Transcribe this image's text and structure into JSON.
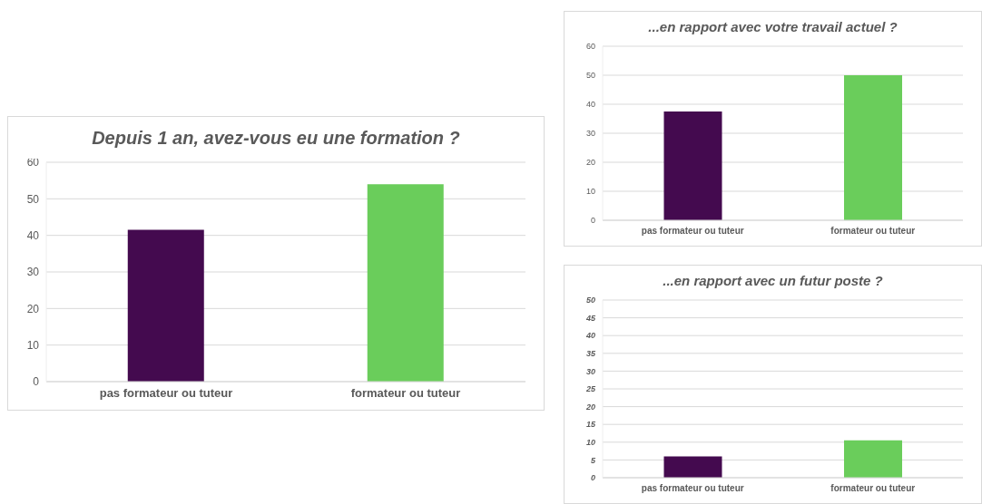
{
  "chart_data": [
    {
      "type": "bar",
      "title": "Depuis 1 an, avez-vous eu une formation ?",
      "categories": [
        "pas formateur ou tuteur",
        "formateur ou tuteur"
      ],
      "values": [
        41.5,
        54
      ],
      "colors": [
        "#440a4f",
        "#6acd5b"
      ],
      "ylim": [
        0,
        60
      ],
      "yticks": [
        0,
        10,
        20,
        30,
        40,
        50,
        60
      ],
      "grid": "y"
    },
    {
      "type": "bar",
      "title": "...en rapport avec votre travail actuel ?",
      "categories": [
        "pas formateur ou tuteur",
        "formateur ou tuteur"
      ],
      "values": [
        37.5,
        50
      ],
      "colors": [
        "#440a4f",
        "#6acd5b"
      ],
      "ylim": [
        0,
        60
      ],
      "yticks": [
        0,
        10,
        20,
        30,
        40,
        50,
        60
      ],
      "grid": "y"
    },
    {
      "type": "bar",
      "title": "...en rapport avec un futur poste ?",
      "categories": [
        "pas formateur ou tuteur",
        "formateur ou tuteur"
      ],
      "values": [
        6,
        10.5
      ],
      "colors": [
        "#440a4f",
        "#6acd5b"
      ],
      "ylim": [
        0,
        50
      ],
      "yticks": [
        0,
        5,
        10,
        15,
        20,
        25,
        30,
        35,
        40,
        45,
        50
      ],
      "grid": "y"
    }
  ]
}
